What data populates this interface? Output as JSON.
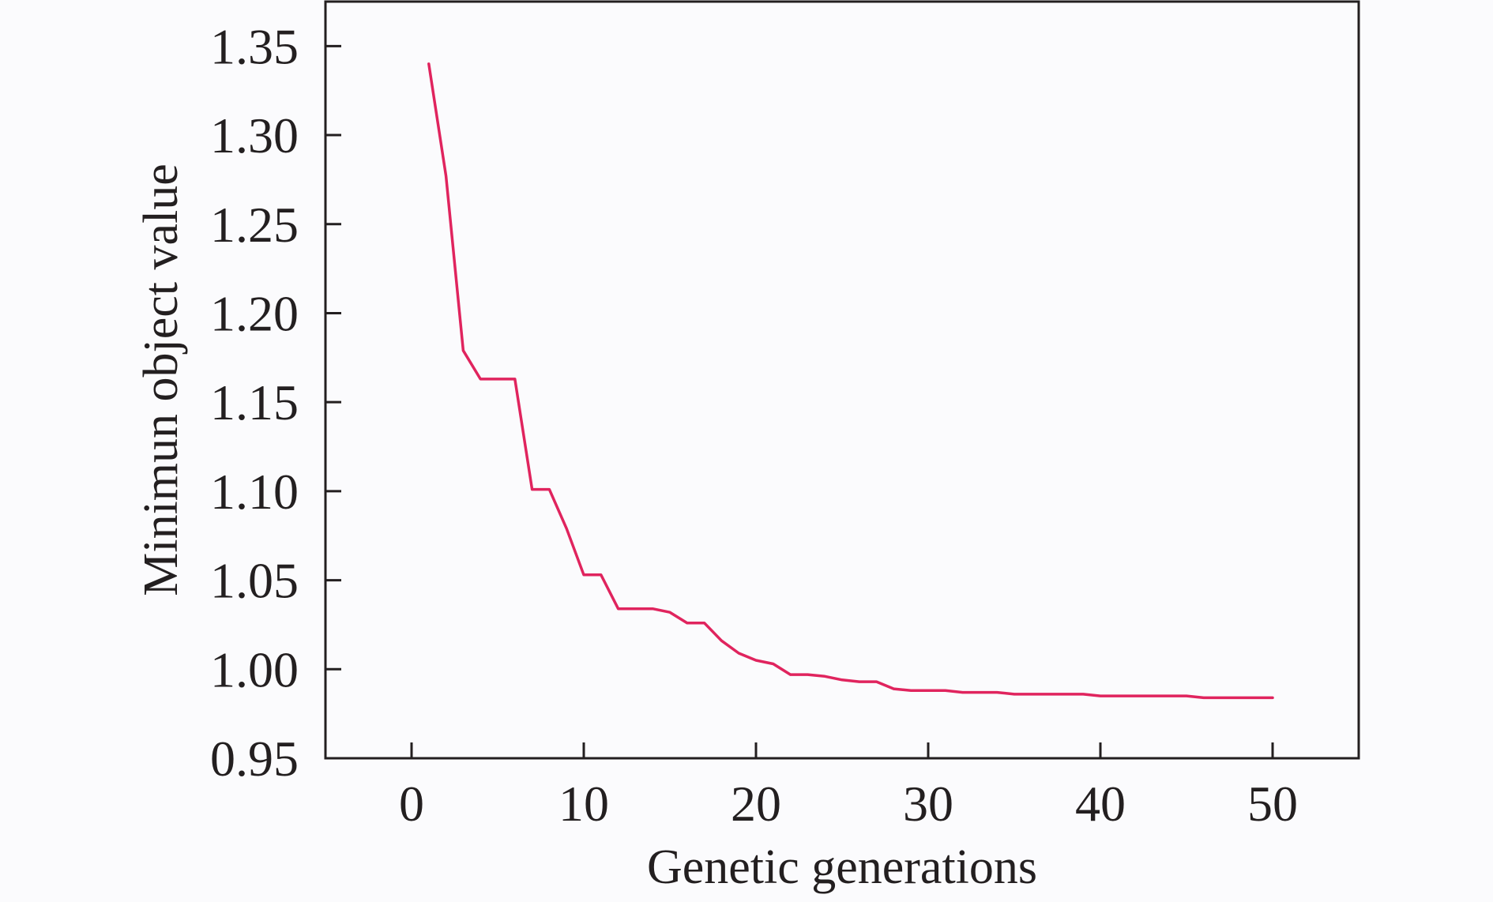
{
  "chart_data": {
    "type": "line",
    "title": "",
    "xlabel": "Genetic generations",
    "ylabel": "Minimun object value",
    "xlim": [
      -5,
      55
    ],
    "ylim": [
      0.95,
      1.375
    ],
    "x_ticks": [
      0,
      10,
      20,
      30,
      40,
      50
    ],
    "x_tick_labels": [
      "0",
      "10",
      "20",
      "30",
      "40",
      "50"
    ],
    "y_ticks": [
      0.95,
      1.0,
      1.05,
      1.1,
      1.15,
      1.2,
      1.25,
      1.3,
      1.35
    ],
    "y_tick_labels": [
      "0.95",
      "1.00",
      "1.05",
      "1.10",
      "1.15",
      "1.20",
      "1.25",
      "1.30",
      "1.35"
    ],
    "grid": false,
    "legend": "none",
    "series": [
      {
        "color": "#e0245e",
        "x": [
          1,
          2,
          3,
          4,
          5,
          6,
          7,
          8,
          9,
          10,
          11,
          12,
          13,
          14,
          15,
          16,
          17,
          18,
          19,
          20,
          21,
          22,
          23,
          24,
          25,
          26,
          27,
          28,
          29,
          30,
          31,
          32,
          33,
          34,
          35,
          36,
          37,
          38,
          39,
          40,
          41,
          42,
          43,
          44,
          45,
          46,
          47,
          48,
          49,
          50
        ],
        "y": [
          1.34,
          1.277,
          1.179,
          1.163,
          1.163,
          1.163,
          1.101,
          1.101,
          1.079,
          1.053,
          1.053,
          1.034,
          1.034,
          1.034,
          1.032,
          1.026,
          1.026,
          1.016,
          1.009,
          1.005,
          1.003,
          0.997,
          0.997,
          0.996,
          0.994,
          0.993,
          0.993,
          0.989,
          0.988,
          0.988,
          0.988,
          0.987,
          0.987,
          0.987,
          0.986,
          0.986,
          0.986,
          0.986,
          0.986,
          0.985,
          0.985,
          0.985,
          0.985,
          0.985,
          0.985,
          0.984,
          0.984,
          0.984,
          0.984,
          0.984
        ]
      }
    ]
  }
}
